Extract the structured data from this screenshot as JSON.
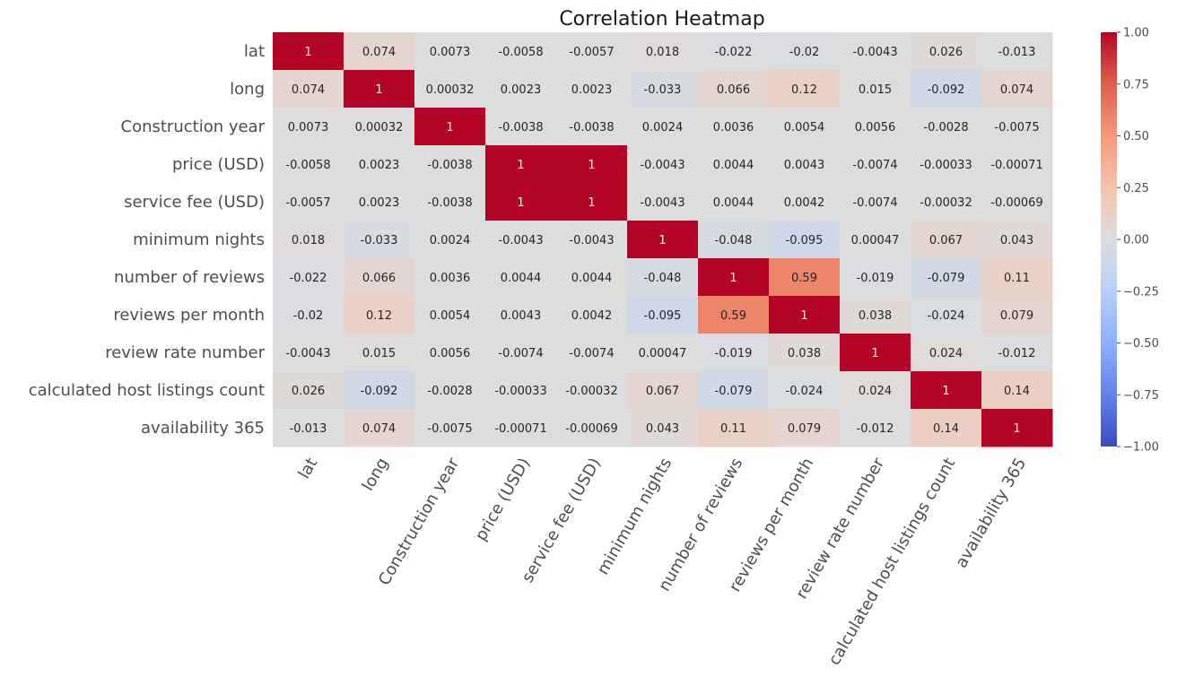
{
  "chart_data": {
    "type": "heatmap",
    "title": "Correlation Heatmap",
    "rows": [
      "lat",
      "long",
      "Construction year",
      "price (USD)",
      "service fee (USD)",
      "minimum nights",
      "number of reviews",
      "reviews per month",
      "review rate number",
      "calculated host listings count",
      "availability 365"
    ],
    "columns": [
      "lat",
      "long",
      "Construction year",
      "price (USD)",
      "service fee (USD)",
      "minimum nights",
      "number of reviews",
      "reviews per month",
      "review rate number",
      "calculated host listings count",
      "availability 365"
    ],
    "values": [
      [
        1,
        0.074,
        0.0073,
        -0.0058,
        -0.0057,
        0.018,
        -0.022,
        -0.02,
        -0.0043,
        0.026,
        -0.013
      ],
      [
        0.074,
        1,
        0.00032,
        0.0023,
        0.0023,
        -0.033,
        0.066,
        0.12,
        0.015,
        -0.092,
        0.074
      ],
      [
        0.0073,
        0.00032,
        1,
        -0.0038,
        -0.0038,
        0.0024,
        0.0036,
        0.0054,
        0.0056,
        -0.0028,
        -0.0075
      ],
      [
        -0.0058,
        0.0023,
        -0.0038,
        1,
        1,
        -0.0043,
        0.0044,
        0.0043,
        -0.0074,
        -0.00033,
        -0.00071
      ],
      [
        -0.0057,
        0.0023,
        -0.0038,
        1,
        1,
        -0.0043,
        0.0044,
        0.0042,
        -0.0074,
        -0.00032,
        -0.00069
      ],
      [
        0.018,
        -0.033,
        0.0024,
        -0.0043,
        -0.0043,
        1,
        -0.048,
        -0.095,
        0.00047,
        0.067,
        0.043
      ],
      [
        -0.022,
        0.066,
        0.0036,
        0.0044,
        0.0044,
        -0.048,
        1,
        0.59,
        -0.019,
        -0.079,
        0.11
      ],
      [
        -0.02,
        0.12,
        0.0054,
        0.0043,
        0.0042,
        -0.095,
        0.59,
        1,
        0.038,
        -0.024,
        0.079
      ],
      [
        -0.0043,
        0.015,
        0.0056,
        -0.0074,
        -0.0074,
        0.00047,
        -0.019,
        0.038,
        1,
        0.024,
        -0.012
      ],
      [
        0.026,
        -0.092,
        -0.0028,
        -0.00033,
        -0.00032,
        0.067,
        -0.079,
        -0.024,
        0.024,
        1,
        0.14
      ],
      [
        -0.013,
        0.074,
        -0.0075,
        -0.00071,
        -0.00069,
        0.043,
        0.11,
        0.079,
        -0.012,
        0.14,
        1
      ]
    ],
    "value_labels": [
      [
        "1",
        "0.074",
        "0.0073",
        "-0.0058",
        "-0.0057",
        "0.018",
        "-0.022",
        "-0.02",
        "-0.0043",
        "0.026",
        "-0.013"
      ],
      [
        "0.074",
        "1",
        "0.00032",
        "0.0023",
        "0.0023",
        "-0.033",
        "0.066",
        "0.12",
        "0.015",
        "-0.092",
        "0.074"
      ],
      [
        "0.0073",
        "0.00032",
        "1",
        "-0.0038",
        "-0.0038",
        "0.0024",
        "0.0036",
        "0.0054",
        "0.0056",
        "-0.0028",
        "-0.0075"
      ],
      [
        "-0.0058",
        "0.0023",
        "-0.0038",
        "1",
        "1",
        "-0.0043",
        "0.0044",
        "0.0043",
        "-0.0074",
        "-0.00033",
        "-0.00071"
      ],
      [
        "-0.0057",
        "0.0023",
        "-0.0038",
        "1",
        "1",
        "-0.0043",
        "0.0044",
        "0.0042",
        "-0.0074",
        "-0.00032",
        "-0.00069"
      ],
      [
        "0.018",
        "-0.033",
        "0.0024",
        "-0.0043",
        "-0.0043",
        "1",
        "-0.048",
        "-0.095",
        "0.00047",
        "0.067",
        "0.043"
      ],
      [
        "-0.022",
        "0.066",
        "0.0036",
        "0.0044",
        "0.0044",
        "-0.048",
        "1",
        "0.59",
        "-0.019",
        "-0.079",
        "0.11"
      ],
      [
        "-0.02",
        "0.12",
        "0.0054",
        "0.0043",
        "0.0042",
        "-0.095",
        "0.59",
        "1",
        "0.038",
        "-0.024",
        "0.079"
      ],
      [
        "-0.0043",
        "0.015",
        "0.0056",
        "-0.0074",
        "-0.0074",
        "0.00047",
        "-0.019",
        "0.038",
        "1",
        "0.024",
        "-0.012"
      ],
      [
        "0.026",
        "-0.092",
        "-0.0028",
        "-0.00033",
        "-0.00032",
        "0.067",
        "-0.079",
        "-0.024",
        "0.024",
        "1",
        "0.14"
      ],
      [
        "-0.013",
        "0.074",
        "-0.0075",
        "-0.00071",
        "-0.00069",
        "0.043",
        "0.11",
        "0.079",
        "-0.012",
        "0.14",
        "1"
      ]
    ],
    "colormap": "coolwarm",
    "vmin": -1,
    "vmax": 1,
    "colorbar_ticks": [
      1.0,
      0.75,
      0.5,
      0.25,
      0.0,
      -0.25,
      -0.5,
      -0.75,
      -1.0
    ],
    "colorbar_tick_labels": [
      "1.00",
      "0.75",
      "0.50",
      "0.25",
      "0.00",
      "−0.25",
      "−0.50",
      "−0.75",
      "−1.00"
    ],
    "grid": false,
    "legend": "colorbar-right"
  }
}
